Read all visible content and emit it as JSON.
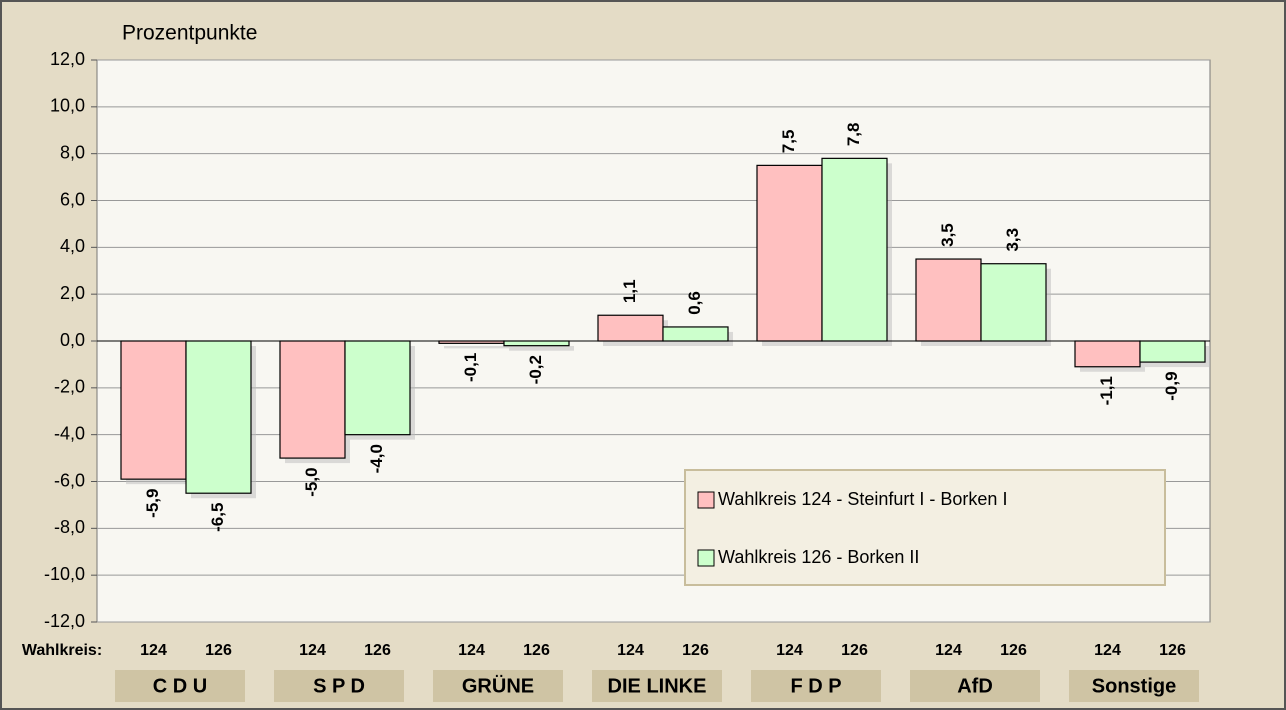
{
  "chart_data": {
    "type": "bar",
    "axis_label": "Prozentpunkte",
    "district_label": "Wahlkreis:",
    "categories": [
      "C D U",
      "S P D",
      "GRÜNE",
      "DIE LINKE",
      "F D P",
      "AfD",
      "Sonstige"
    ],
    "series": [
      {
        "name": "Wahlkreis 124 - Steinfurt I - Borken I",
        "short": "124",
        "color": "#ffc0c0",
        "values": [
          -5.9,
          -5.0,
          -0.1,
          1.1,
          7.5,
          3.5,
          -1.1
        ],
        "value_labels": [
          "-5,9",
          "-5,0",
          "-0,1",
          "1,1",
          "7,5",
          "3,5",
          "-1,1"
        ]
      },
      {
        "name": "Wahlkreis 126 - Borken II",
        "short": "126",
        "color": "#ccffcc",
        "values": [
          -6.5,
          -4.0,
          -0.2,
          0.6,
          7.8,
          3.3,
          -0.9
        ],
        "value_labels": [
          "-6,5",
          "-4,0",
          "-0,2",
          "0,6",
          "7,8",
          "3,3",
          "-0,9"
        ]
      }
    ],
    "ylim": [
      -12,
      12
    ],
    "yticks": [
      {
        "value": -12,
        "label": "-12,0"
      },
      {
        "value": -10,
        "label": "-10,0"
      },
      {
        "value": -8,
        "label": "-8,0"
      },
      {
        "value": -6,
        "label": "-6,0"
      },
      {
        "value": -4,
        "label": "-4,0"
      },
      {
        "value": -2,
        "label": "-2,0"
      },
      {
        "value": 0,
        "label": "0,0"
      },
      {
        "value": 2,
        "label": "2,0"
      },
      {
        "value": 4,
        "label": "4,0"
      },
      {
        "value": 6,
        "label": "6,0"
      },
      {
        "value": 8,
        "label": "8,0"
      },
      {
        "value": 10,
        "label": "10,0"
      },
      {
        "value": 12,
        "label": "12,0"
      }
    ],
    "grid": true
  }
}
